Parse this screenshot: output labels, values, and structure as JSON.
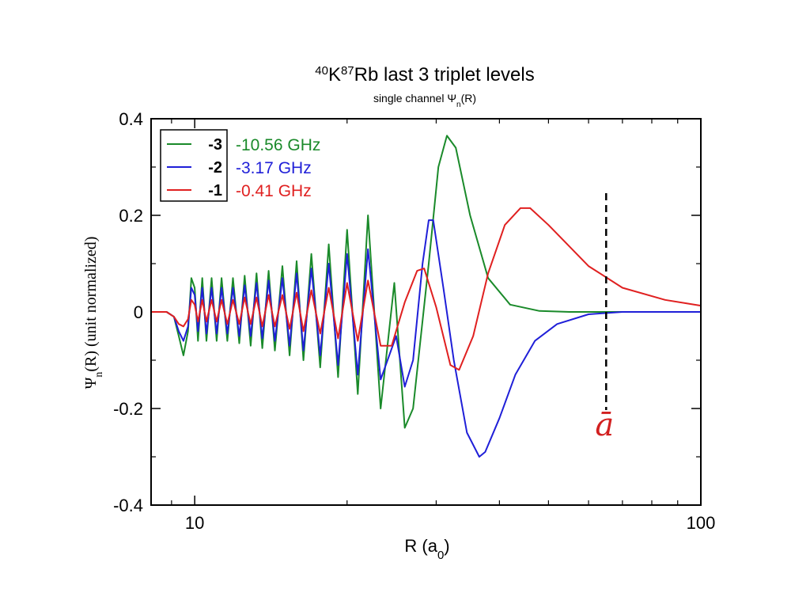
{
  "chart_data": {
    "type": "line",
    "title": {
      "sup1": "40",
      "el1": "K",
      "sup2": "87",
      "rest": "Rb last 3 triplet levels"
    },
    "subtitle": {
      "prefix": "single channel Ψ",
      "sub": "n",
      "suffix": "(R)"
    },
    "xlabel": {
      "main": "R (a",
      "sub": "0",
      "end": ")"
    },
    "ylabel": {
      "main": "Ψ",
      "sub": "n",
      "rest": "(R) (unit normalized)"
    },
    "xscale": "log",
    "xlim": [
      8.2,
      100
    ],
    "ylim": [
      -0.4,
      0.4
    ],
    "x_ticks": [
      {
        "value": 10,
        "label": "10"
      },
      {
        "value": 100,
        "label": "100"
      }
    ],
    "y_ticks": [
      {
        "value": 0.4,
        "label": "0.4"
      },
      {
        "value": 0.2,
        "label": "0.2"
      },
      {
        "value": 0,
        "label": "0"
      },
      {
        "value": -0.2,
        "label": "-0.2"
      },
      {
        "value": -0.4,
        "label": "-0.4"
      }
    ],
    "legend_placement": "top-left",
    "series": [
      {
        "name": "-3",
        "energy": "-10.56 GHz",
        "color": "#1a8a2a",
        "points": [
          [
            8.2,
            0
          ],
          [
            8.8,
            0
          ],
          [
            9.1,
            -0.01
          ],
          [
            9.3,
            -0.05
          ],
          [
            9.5,
            -0.09
          ],
          [
            9.7,
            -0.04
          ],
          [
            9.85,
            0.07
          ],
          [
            10.0,
            0.05
          ],
          [
            10.15,
            -0.06
          ],
          [
            10.35,
            0.07
          ],
          [
            10.55,
            -0.06
          ],
          [
            10.8,
            0.07
          ],
          [
            11.05,
            -0.06
          ],
          [
            11.3,
            0.07
          ],
          [
            11.6,
            -0.06
          ],
          [
            11.9,
            0.07
          ],
          [
            12.25,
            -0.065
          ],
          [
            12.55,
            0.075
          ],
          [
            12.9,
            -0.07
          ],
          [
            13.25,
            0.08
          ],
          [
            13.6,
            -0.075
          ],
          [
            14.0,
            0.085
          ],
          [
            14.4,
            -0.08
          ],
          [
            14.9,
            0.095
          ],
          [
            15.4,
            -0.09
          ],
          [
            15.9,
            0.105
          ],
          [
            16.4,
            -0.1
          ],
          [
            17.0,
            0.12
          ],
          [
            17.7,
            -0.115
          ],
          [
            18.4,
            0.14
          ],
          [
            19.2,
            -0.135
          ],
          [
            20.0,
            0.17
          ],
          [
            21.0,
            -0.17
          ],
          [
            22.0,
            0.2
          ],
          [
            23.3,
            -0.2
          ],
          [
            24.8,
            0.06
          ],
          [
            26.0,
            -0.24
          ],
          [
            27.0,
            -0.2
          ],
          [
            29.0,
            0.1
          ],
          [
            30.3,
            0.3
          ],
          [
            31.5,
            0.365
          ],
          [
            32.8,
            0.34
          ],
          [
            35.0,
            0.2
          ],
          [
            38.0,
            0.07
          ],
          [
            42.0,
            0.015
          ],
          [
            48.0,
            0.002
          ],
          [
            55.0,
            0
          ],
          [
            70.0,
            0
          ],
          [
            100,
            0
          ]
        ]
      },
      {
        "name": "-2",
        "energy": "-3.17 GHz",
        "color": "#1f1fd8",
        "points": [
          [
            8.2,
            0
          ],
          [
            8.8,
            0
          ],
          [
            9.1,
            -0.01
          ],
          [
            9.3,
            -0.04
          ],
          [
            9.5,
            -0.06
          ],
          [
            9.7,
            -0.03
          ],
          [
            9.85,
            0.05
          ],
          [
            10.0,
            0.035
          ],
          [
            10.15,
            -0.04
          ],
          [
            10.35,
            0.05
          ],
          [
            10.55,
            -0.045
          ],
          [
            10.8,
            0.05
          ],
          [
            11.05,
            -0.045
          ],
          [
            11.3,
            0.05
          ],
          [
            11.6,
            -0.045
          ],
          [
            11.9,
            0.05
          ],
          [
            12.25,
            -0.05
          ],
          [
            12.55,
            0.055
          ],
          [
            12.9,
            -0.05
          ],
          [
            13.25,
            0.06
          ],
          [
            13.6,
            -0.055
          ],
          [
            14.0,
            0.065
          ],
          [
            14.4,
            -0.06
          ],
          [
            14.9,
            0.07
          ],
          [
            15.4,
            -0.07
          ],
          [
            15.9,
            0.08
          ],
          [
            16.4,
            -0.08
          ],
          [
            17.0,
            0.09
          ],
          [
            17.7,
            -0.09
          ],
          [
            18.4,
            0.1
          ],
          [
            19.2,
            -0.11
          ],
          [
            20.0,
            0.12
          ],
          [
            21.0,
            -0.13
          ],
          [
            22.0,
            0.13
          ],
          [
            23.3,
            -0.14
          ],
          [
            25.0,
            -0.05
          ],
          [
            26.0,
            -0.155
          ],
          [
            27.0,
            -0.1
          ],
          [
            28.2,
            0.1
          ],
          [
            29.0,
            0.19
          ],
          [
            29.6,
            0.19
          ],
          [
            31.0,
            0.05
          ],
          [
            32.5,
            -0.1
          ],
          [
            34.5,
            -0.25
          ],
          [
            36.5,
            -0.3
          ],
          [
            37.5,
            -0.29
          ],
          [
            40.0,
            -0.22
          ],
          [
            43.0,
            -0.13
          ],
          [
            47.0,
            -0.06
          ],
          [
            52.0,
            -0.025
          ],
          [
            60.0,
            -0.005
          ],
          [
            70.0,
            0
          ],
          [
            100,
            0
          ]
        ]
      },
      {
        "name": "-1",
        "energy": "-0.41 GHz",
        "color": "#e02020",
        "points": [
          [
            8.2,
            0
          ],
          [
            8.8,
            0
          ],
          [
            9.1,
            -0.01
          ],
          [
            9.3,
            -0.025
          ],
          [
            9.5,
            -0.03
          ],
          [
            9.7,
            -0.015
          ],
          [
            9.85,
            0.025
          ],
          [
            10.0,
            0.015
          ],
          [
            10.15,
            -0.02
          ],
          [
            10.35,
            0.025
          ],
          [
            10.55,
            -0.02
          ],
          [
            10.8,
            0.025
          ],
          [
            11.05,
            -0.02
          ],
          [
            11.3,
            0.025
          ],
          [
            11.6,
            -0.025
          ],
          [
            11.9,
            0.025
          ],
          [
            12.25,
            -0.025
          ],
          [
            12.55,
            0.03
          ],
          [
            12.9,
            -0.025
          ],
          [
            13.25,
            0.03
          ],
          [
            13.6,
            -0.03
          ],
          [
            14.0,
            0.035
          ],
          [
            14.4,
            -0.03
          ],
          [
            14.9,
            0.035
          ],
          [
            15.4,
            -0.035
          ],
          [
            15.9,
            0.04
          ],
          [
            16.4,
            -0.04
          ],
          [
            17.0,
            0.045
          ],
          [
            17.7,
            -0.045
          ],
          [
            18.4,
            0.05
          ],
          [
            19.2,
            -0.055
          ],
          [
            20.0,
            0.06
          ],
          [
            21.0,
            -0.06
          ],
          [
            22.0,
            0.065
          ],
          [
            23.3,
            -0.07
          ],
          [
            24.5,
            -0.07
          ],
          [
            26.0,
            0.02
          ],
          [
            27.5,
            0.085
          ],
          [
            28.4,
            0.09
          ],
          [
            30.0,
            0.01
          ],
          [
            32.0,
            -0.11
          ],
          [
            33.3,
            -0.12
          ],
          [
            35.5,
            -0.05
          ],
          [
            38.0,
            0.08
          ],
          [
            41.0,
            0.18
          ],
          [
            44.0,
            0.215
          ],
          [
            46.0,
            0.215
          ],
          [
            50.0,
            0.18
          ],
          [
            60.0,
            0.095
          ],
          [
            70.0,
            0.05
          ],
          [
            85.0,
            0.025
          ],
          [
            100,
            0.013
          ]
        ]
      }
    ],
    "annotation": {
      "label": "ā",
      "x": 65
    }
  }
}
